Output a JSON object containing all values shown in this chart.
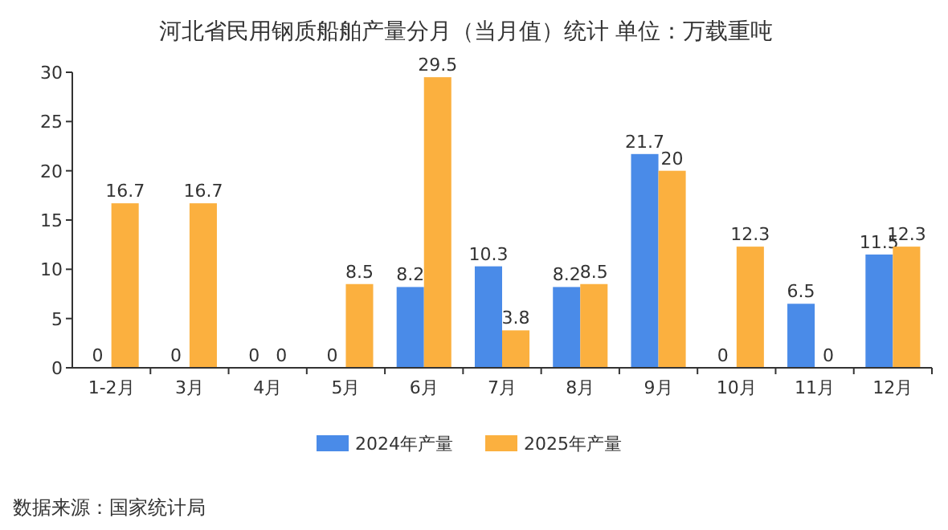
{
  "chart_data": {
    "type": "bar",
    "title": "河北省民用钢质船舶产量分月（当月值）统计 单位：万载重吨",
    "categories": [
      "1-2月",
      "3月",
      "4月",
      "5月",
      "6月",
      "7月",
      "8月",
      "9月",
      "10月",
      "11月",
      "12月"
    ],
    "series": [
      {
        "name": "2024年产量",
        "color": "#4a8be8",
        "values": [
          0,
          0,
          0,
          0,
          8.2,
          10.3,
          8.2,
          21.7,
          0,
          6.5,
          11.5
        ]
      },
      {
        "name": "2025年产量",
        "color": "#fbb03f",
        "values": [
          16.7,
          16.7,
          0,
          8.5,
          29.5,
          3.8,
          8.5,
          20,
          12.3,
          0,
          12.3
        ]
      }
    ],
    "ylim": [
      0,
      30
    ],
    "yticks": [
      0,
      5,
      10,
      15,
      20,
      25,
      30
    ],
    "grid": false,
    "legend": "bottom",
    "data_labels": true,
    "annotations": [
      "数据来源：国家统计局"
    ]
  }
}
